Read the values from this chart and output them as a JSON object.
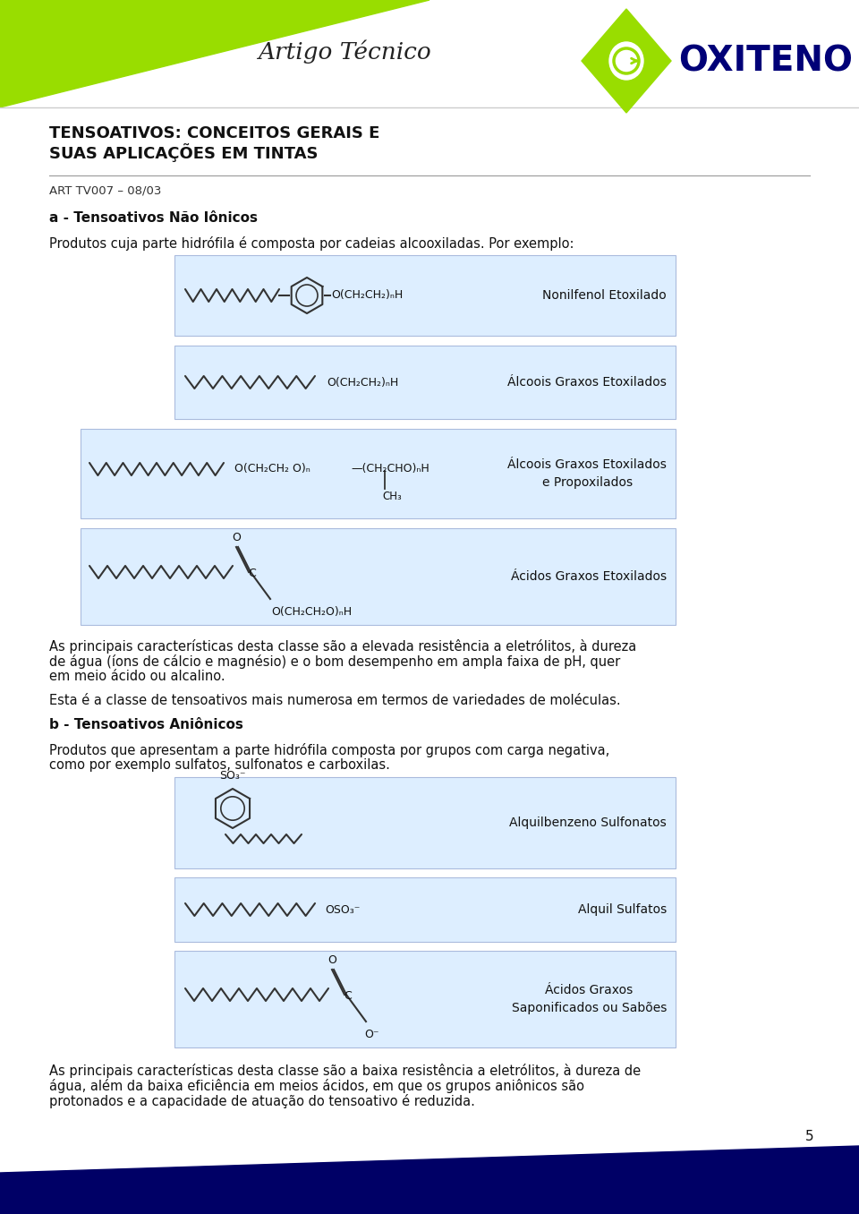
{
  "page_bg": "#ffffff",
  "header_green_color": "#99dd00",
  "header_dark_blue": "#000066",
  "title_text_line1": "TENSOATIVOS: CONCEITOS GERAIS E",
  "title_text_line2": "SUAS APLICAÇÕES EM TINTAS",
  "subtitle_italic": "Artigo Técnico",
  "art_ref": "ART TV007 – 08/03",
  "section_a_title": "a - Tensoativos Não Iônicos",
  "section_a_intro": "Produtos cuja parte hidrófila é composta por cadeias alcooxiladas. Por exemplo:",
  "box_bg": "#ddeeff",
  "box_border": "#aabbdd",
  "box1_formula": "O(CH₂CH₂)ₙH",
  "box1_label": "Nonilfenol Etoxilado",
  "box2_formula": "O(CH₂CH₂)ₙH",
  "box2_label": "Álcoois Graxos Etoxilados",
  "box3_formula1": "O(CH₂CH₂ O)ₙ",
  "box3_formula2": "—(CH₂CHO)ₙH",
  "box3_formula3": "CH₃",
  "box3_label": "Álcoois Graxos Etoxilados\ne Propoxilados",
  "box4_formula": "O(CH₂CH₂O)ₙH",
  "box4_label": "Ácidos Graxos Etoxilados",
  "para1_line1": "As principais características desta classe são a elevada resistência a eletrólitos, à dureza",
  "para1_line2": "de água (íons de cálcio e magnésio) e o bom desempenho em ampla faixa de pH, quer",
  "para1_line3": "em meio ácido ou alcalino.",
  "para2_text": "Esta é a classe de tensoativos mais numerosa em termos de variedades de moléculas.",
  "section_b_title": "b - Tensoativos Aniônicos",
  "section_b_line1": "Produtos que apresentam a parte hidrófila composta por grupos com carga negativa,",
  "section_b_line2": "como por exemplo sulfatos, sulfonatos e carboxilas.",
  "boxb1_formula": "SO₃⁻",
  "boxb1_label": "Alquilbenzeno Sulfonatos",
  "boxb2_formula": "OSO₃⁻",
  "boxb2_label": "Alquil Sulfatos",
  "boxb3_label_line1": "Ácidos Graxos",
  "boxb3_label_line2": "Saponificados ou Sabões",
  "para3_line1": "As principais características desta classe são a baixa resistência a eletrólitos, à dureza de",
  "para3_line2": "água, além da baixa eficiência em meios ácidos, em que os grupos aniônicos são",
  "para3_line3": "protonados e a capacidade de atuação do tensoativo é reduzida.",
  "page_num": "5",
  "oxiteno_text": "OXITENO"
}
